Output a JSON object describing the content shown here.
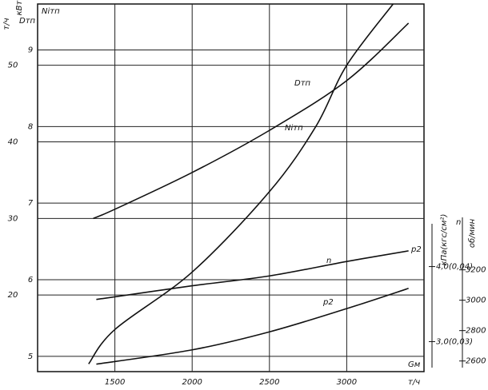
{
  "chart_data": {
    "type": "line",
    "x_title": "Gм",
    "x_label": "т/ч",
    "xlim": [
      1000,
      3500
    ],
    "xticks": [
      1500,
      2000,
      2500,
      3000
    ],
    "axes": [
      {
        "title": "Dтп",
        "label": "т/ч",
        "ylim": [
          10,
          58
        ],
        "yticks": [
          20,
          30,
          40,
          50
        ]
      },
      {
        "title": "Niтп",
        "label": "кВт",
        "ylim": [
          4.8,
          9.6
        ],
        "yticks": [
          5,
          6,
          7,
          8,
          9
        ]
      },
      {
        "title": "p2",
        "label": "кПа(кгс/см²)",
        "ylim": [
          2.6,
          7.5
        ],
        "yticks": [
          {
            "value": 3,
            "label": "3,0(0,03)"
          },
          {
            "value": 4,
            "label": "4,0(0,04)"
          }
        ]
      },
      {
        "title": "n",
        "label": "об/мин",
        "ylim": [
          2530,
          4950
        ],
        "yticks": [
          2600,
          2800,
          3000,
          3200
        ]
      }
    ],
    "grid": true,
    "series": [
      {
        "name": "Dтп",
        "color": "#111111",
        "axis": 0,
        "x": [
          1360,
          1500,
          2000,
          2500,
          3000,
          3400
        ],
        "values": [
          30,
          31.2,
          36,
          41.5,
          48,
          55.5
        ]
      },
      {
        "name": "Niтп",
        "color": "#111111",
        "axis": 1,
        "x": [
          1330,
          1500,
          2000,
          2500,
          2800,
          3000,
          3300
        ],
        "values": [
          4.9,
          5.35,
          6.1,
          7.15,
          8.0,
          8.8,
          9.6
        ]
      },
      {
        "name": "n",
        "color": "#111111",
        "axis": 3,
        "x": [
          1380,
          2000,
          2500,
          3000,
          3400
        ],
        "values": [
          3005,
          3095,
          3160,
          3255,
          3325
        ]
      },
      {
        "name": "p2",
        "color": "#111111",
        "axis": 2,
        "x": [
          1380,
          2000,
          2500,
          3000,
          3400
        ],
        "values": [
          2.7,
          2.89,
          3.13,
          3.44,
          3.71
        ]
      }
    ]
  }
}
